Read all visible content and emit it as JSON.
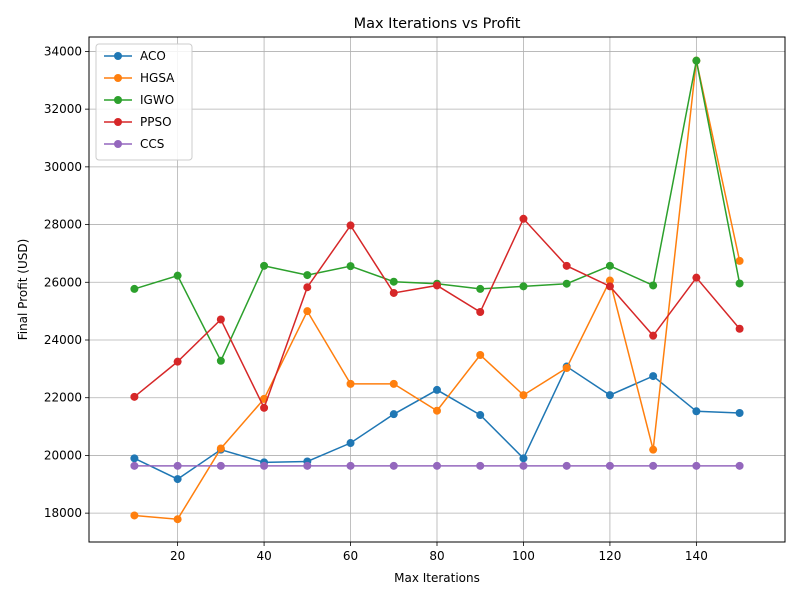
{
  "chart_data": {
    "type": "line",
    "title": "Max Iterations vs Profit",
    "xlabel": "Max Iterations",
    "ylabel": "Final Profit (USD)",
    "x": [
      10,
      20,
      30,
      40,
      50,
      60,
      70,
      80,
      90,
      100,
      110,
      120,
      130,
      140,
      150
    ],
    "xlim": [
      -0.5,
      160.5
    ],
    "ylim": [
      17000,
      34500
    ],
    "xticks": [
      20,
      40,
      60,
      80,
      100,
      120,
      140
    ],
    "yticks": [
      18000,
      20000,
      22000,
      24000,
      26000,
      28000,
      30000,
      32000,
      34000
    ],
    "grid": true,
    "legend_position": "upper-left",
    "marker": "circle",
    "series": [
      {
        "name": "ACO",
        "color": "#1f77b4",
        "values": [
          19900,
          19180,
          20200,
          19760,
          19790,
          20430,
          21430,
          22270,
          21400,
          19900,
          23080,
          22090,
          22750,
          21530,
          21470
        ]
      },
      {
        "name": "HGSA",
        "color": "#ff7f0e",
        "values": [
          17920,
          17790,
          20240,
          21960,
          25000,
          22480,
          22480,
          21550,
          23480,
          22090,
          23030,
          26060,
          20200,
          33680,
          26740
        ]
      },
      {
        "name": "IGWO",
        "color": "#2ca02c",
        "values": [
          25770,
          26230,
          23280,
          26570,
          26250,
          26560,
          26020,
          25950,
          25770,
          25860,
          25950,
          26570,
          25890,
          33680,
          25960
        ]
      },
      {
        "name": "PPSO",
        "color": "#d62728",
        "values": [
          22030,
          23250,
          24710,
          21650,
          25830,
          27970,
          25630,
          25890,
          24970,
          28200,
          26570,
          25860,
          24150,
          26160,
          24390
        ]
      },
      {
        "name": "CCS",
        "color": "#9467bd",
        "values": [
          19640,
          19640,
          19640,
          19640,
          19640,
          19640,
          19640,
          19640,
          19640,
          19640,
          19640,
          19640,
          19640,
          19640,
          19640
        ]
      }
    ]
  }
}
